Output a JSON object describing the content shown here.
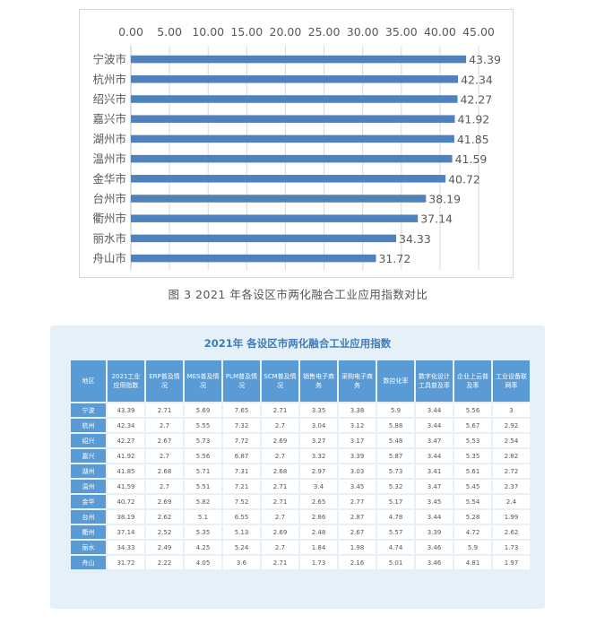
{
  "chart_data": {
    "type": "bar",
    "orientation": "horizontal",
    "categories": [
      "宁波市",
      "杭州市",
      "绍兴市",
      "嘉兴市",
      "湖州市",
      "温州市",
      "金华市",
      "台州市",
      "衢州市",
      "丽水市",
      "舟山市"
    ],
    "values": [
      43.39,
      42.34,
      42.27,
      41.92,
      41.85,
      41.59,
      40.72,
      38.19,
      37.14,
      34.33,
      31.72
    ],
    "value_labels": [
      "43.39",
      "42.34",
      "42.27",
      "41.92",
      "41.85",
      "41.59",
      "40.72",
      "38.19",
      "37.14",
      "34.33",
      "31.72"
    ],
    "x_ticks": [
      "0.00",
      "5.00",
      "10.00",
      "15.00",
      "20.00",
      "25.00",
      "30.00",
      "35.00",
      "40.00",
      "45.00"
    ],
    "xlim": [
      0,
      45
    ],
    "axis_position": "top",
    "grid": true,
    "bar_color": "#4f81bd"
  },
  "caption": "图 3  2021 年各设区市两化融合工业应用指数对比",
  "table": {
    "title": "2021年 各设区市两化融合工业应用指数",
    "headers": [
      "地区",
      "2021工业应用指数",
      "ERP普及情况",
      "MES普及情况",
      "PLM普及情况",
      "SCM普及情况",
      "销售电子商务",
      "采购电子商务",
      "数控化率",
      "数字化设计工具普及率",
      "企业上云普及率",
      "工业设备联网率"
    ],
    "rows": [
      [
        "宁波",
        "43.39",
        "2.71",
        "5.69",
        "7.65",
        "2.71",
        "3.35",
        "3.38",
        "5.9",
        "3.44",
        "5.56",
        "3"
      ],
      [
        "杭州",
        "42.34",
        "2.7",
        "5.55",
        "7.32",
        "2.7",
        "3.04",
        "3.12",
        "5.88",
        "3.44",
        "5.67",
        "2.92"
      ],
      [
        "绍兴",
        "42.27",
        "2.67",
        "5.73",
        "7.72",
        "2.69",
        "3.27",
        "3.17",
        "5.48",
        "3.47",
        "5.53",
        "2.54"
      ],
      [
        "嘉兴",
        "41.92",
        "2.7",
        "5.56",
        "6.87",
        "2.7",
        "3.32",
        "3.39",
        "5.87",
        "3.44",
        "5.35",
        "2.82"
      ],
      [
        "湖州",
        "41.85",
        "2.68",
        "5.71",
        "7.31",
        "2.68",
        "2.97",
        "3.03",
        "5.73",
        "3.41",
        "5.61",
        "2.72"
      ],
      [
        "温州",
        "41.59",
        "2.7",
        "5.51",
        "7.21",
        "2.71",
        "3.4",
        "3.45",
        "5.32",
        "3.47",
        "5.45",
        "2.37"
      ],
      [
        "金华",
        "40.72",
        "2.69",
        "5.82",
        "7.52",
        "2.71",
        "2.65",
        "2.77",
        "5.17",
        "3.45",
        "5.54",
        "2.4"
      ],
      [
        "台州",
        "38.19",
        "2.62",
        "5.1",
        "6.55",
        "2.7",
        "2.86",
        "2.87",
        "4.78",
        "3.44",
        "5.28",
        "1.99"
      ],
      [
        "衢州",
        "37.14",
        "2.52",
        "5.35",
        "5.13",
        "2.69",
        "2.48",
        "2.67",
        "5.57",
        "3.39",
        "4.72",
        "2.62"
      ],
      [
        "丽水",
        "34.33",
        "2.49",
        "4.25",
        "5.24",
        "2.7",
        "1.84",
        "1.98",
        "4.74",
        "3.46",
        "5.9",
        "1.73"
      ],
      [
        "舟山",
        "31.72",
        "2.22",
        "4.05",
        "3.6",
        "2.71",
        "1.73",
        "2.16",
        "5.01",
        "3.46",
        "4.81",
        "1.97"
      ]
    ]
  }
}
